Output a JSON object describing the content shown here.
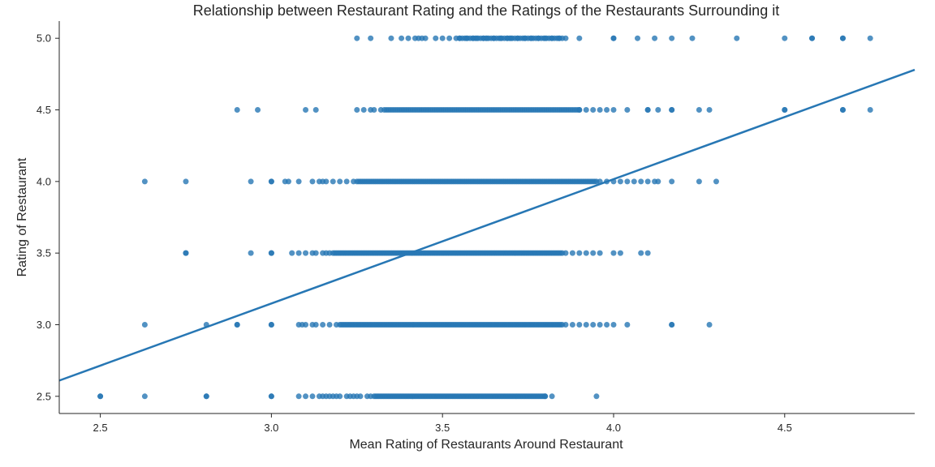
{
  "chart_data": {
    "type": "scatter",
    "title": "Relationship between Restaurant Rating and the Ratings of the Restaurants Surrounding it",
    "xlabel": "Mean Rating of Restaurants Around Restaurant",
    "ylabel": "Rating of Restaurant",
    "xlim": [
      2.38,
      4.88
    ],
    "ylim": [
      2.38,
      5.12
    ],
    "xticks": [
      2.5,
      3.0,
      3.5,
      4.0,
      4.5
    ],
    "xtick_labels": [
      "2.5",
      "3.0",
      "3.5",
      "4.0",
      "4.5"
    ],
    "yticks": [
      2.5,
      3.0,
      3.5,
      4.0,
      4.5,
      5.0
    ],
    "ytick_labels": [
      "2.5",
      "3.0",
      "3.5",
      "4.0",
      "4.5",
      "5.0"
    ],
    "grid": false,
    "legend": "none",
    "colors": {
      "points": "#2777b4",
      "line": "#2777b4"
    },
    "regression_line": {
      "x": [
        2.38,
        4.88
      ],
      "y": [
        2.61,
        4.78
      ]
    },
    "series": [
      {
        "y": 5.0,
        "dense_range": [
          3.55,
          3.85
        ],
        "dense_count": 40,
        "x": [
          3.25,
          3.29,
          3.35,
          3.38,
          3.4,
          3.42,
          3.43,
          3.44,
          3.45,
          3.48,
          3.5,
          3.52,
          3.54,
          3.55,
          3.57,
          3.59,
          3.6,
          3.62,
          3.63,
          3.65,
          3.67,
          3.69,
          3.7,
          3.72,
          3.74,
          3.76,
          3.78,
          3.8,
          3.82,
          3.84,
          3.86,
          3.9,
          4.0,
          4.0,
          4.07,
          4.12,
          4.17,
          4.23,
          4.36,
          4.5,
          4.58,
          4.58,
          4.67,
          4.67,
          4.75
        ]
      },
      {
        "y": 4.5,
        "dense_range": [
          3.33,
          3.9
        ],
        "dense_count": 90,
        "x": [
          2.9,
          2.96,
          3.1,
          3.13,
          3.25,
          3.27,
          3.29,
          3.3,
          3.32,
          3.9,
          3.92,
          3.94,
          3.96,
          3.98,
          4.0,
          4.04,
          4.1,
          4.1,
          4.13,
          4.17,
          4.17,
          4.25,
          4.28,
          4.5,
          4.5,
          4.67,
          4.67,
          4.75
        ]
      },
      {
        "y": 4.0,
        "dense_range": [
          3.25,
          3.95
        ],
        "dense_count": 130,
        "x": [
          2.63,
          2.75,
          2.94,
          3.0,
          3.0,
          3.04,
          3.05,
          3.08,
          3.12,
          3.14,
          3.15,
          3.16,
          3.18,
          3.2,
          3.22,
          3.24,
          3.96,
          3.98,
          4.0,
          4.02,
          4.04,
          4.06,
          4.08,
          4.1,
          4.12,
          4.13,
          4.17,
          4.25,
          4.3
        ]
      },
      {
        "y": 3.5,
        "dense_range": [
          3.18,
          3.85
        ],
        "dense_count": 130,
        "x": [
          2.75,
          2.75,
          2.94,
          3.0,
          3.0,
          3.06,
          3.08,
          3.1,
          3.12,
          3.13,
          3.15,
          3.16,
          3.17,
          3.86,
          3.88,
          3.9,
          3.92,
          3.94,
          3.96,
          4.0,
          4.02,
          4.08,
          4.1
        ]
      },
      {
        "y": 3.0,
        "dense_range": [
          3.2,
          3.85
        ],
        "dense_count": 130,
        "x": [
          2.63,
          2.81,
          2.9,
          2.9,
          3.0,
          3.0,
          3.08,
          3.09,
          3.1,
          3.12,
          3.13,
          3.15,
          3.17,
          3.19,
          3.86,
          3.88,
          3.9,
          3.92,
          3.94,
          3.96,
          3.98,
          4.0,
          4.04,
          4.17,
          4.17,
          4.28
        ]
      },
      {
        "y": 2.5,
        "dense_range": [
          3.3,
          3.8
        ],
        "dense_count": 110,
        "x": [
          2.5,
          2.5,
          2.63,
          2.81,
          2.81,
          3.0,
          3.0,
          3.08,
          3.1,
          3.12,
          3.14,
          3.15,
          3.16,
          3.17,
          3.18,
          3.19,
          3.2,
          3.22,
          3.23,
          3.24,
          3.25,
          3.26,
          3.28,
          3.29,
          3.8,
          3.82,
          3.95
        ]
      }
    ]
  }
}
